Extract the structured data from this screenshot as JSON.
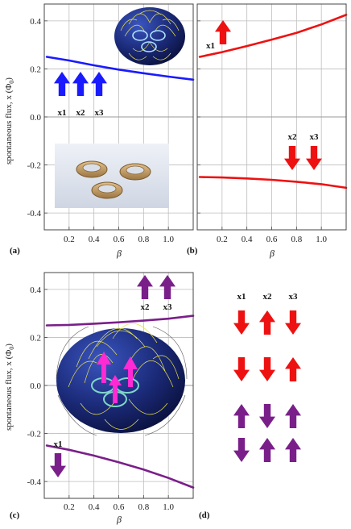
{
  "figure": {
    "y_axis_label": "spontaneous flux, x (Φ",
    "y_axis_label_sub": "0",
    "y_axis_label_tail": ")",
    "panel_labels": [
      "(a)",
      "(b)",
      "(c)",
      "(d)"
    ],
    "x_axis_symbol": "β"
  },
  "chart_data": [
    {
      "type": "line",
      "panel": "a",
      "xlim": [
        0,
        1.2
      ],
      "ylim": [
        -0.47,
        0.47
      ],
      "grid": true,
      "x_ticks": [
        0.2,
        0.4,
        0.6,
        0.8,
        1.0
      ],
      "x_tick_labels": [
        "0.2",
        "0.4",
        "0.6",
        "0.8",
        "1.0"
      ],
      "y_ticks": [
        -0.4,
        -0.2,
        0.0,
        0.2,
        0.4
      ],
      "y_tick_labels": [
        "-0.4",
        "-0.2",
        "0.0",
        "0.2",
        "0.4"
      ],
      "series": [
        {
          "color": "#1a1aff",
          "x": [
            0.02,
            0.2,
            0.4,
            0.6,
            0.8,
            1.0,
            1.2
          ],
          "y": [
            0.25,
            0.235,
            0.215,
            0.197,
            0.182,
            0.168,
            0.155
          ]
        }
      ],
      "arrow_labels": [
        "x1",
        "x2",
        "x3"
      ],
      "arrow_color": "#1a1aff",
      "arrow_directions": [
        "up",
        "up",
        "up"
      ]
    },
    {
      "type": "line",
      "panel": "b",
      "xlim": [
        0,
        1.2
      ],
      "ylim": [
        -0.47,
        0.47
      ],
      "grid": true,
      "x_ticks": [
        0.2,
        0.4,
        0.6,
        0.8,
        1.0
      ],
      "x_tick_labels": [
        "0.2",
        "0.4",
        "0.6",
        "0.8",
        "1.0"
      ],
      "y_ticks": [
        -0.4,
        -0.2,
        0.0,
        0.2,
        0.4
      ],
      "series": [
        {
          "color": "#ee1111",
          "x": [
            0.02,
            0.2,
            0.4,
            0.6,
            0.8,
            1.0,
            1.2
          ],
          "y": [
            0.25,
            0.27,
            0.295,
            0.322,
            0.35,
            0.385,
            0.425
          ]
        },
        {
          "color": "#ee1111",
          "x": [
            0.02,
            0.2,
            0.4,
            0.6,
            0.8,
            1.0,
            1.2
          ],
          "y": [
            -0.25,
            -0.252,
            -0.256,
            -0.262,
            -0.27,
            -0.28,
            -0.295
          ]
        }
      ],
      "arrow_labels": [
        "x1",
        "x2",
        "x3"
      ],
      "arrow_color": "#ee1111",
      "arrow_directions": [
        "up",
        "down",
        "down"
      ]
    },
    {
      "type": "line",
      "panel": "c",
      "xlim": [
        0,
        1.2
      ],
      "ylim": [
        -0.47,
        0.47
      ],
      "grid": true,
      "x_ticks": [
        0.2,
        0.4,
        0.6,
        0.8,
        1.0
      ],
      "x_tick_labels": [
        "0.2",
        "0.4",
        "0.6",
        "0.8",
        "1.0"
      ],
      "y_ticks": [
        -0.4,
        -0.2,
        0.0,
        0.2,
        0.4
      ],
      "y_tick_labels": [
        "-0.4",
        "-0.2",
        "0.0",
        "0.2",
        "0.4"
      ],
      "series": [
        {
          "color": "#7a1f8a",
          "x": [
            0.02,
            0.2,
            0.4,
            0.6,
            0.8,
            1.0,
            1.2
          ],
          "y": [
            0.25,
            0.252,
            0.257,
            0.263,
            0.27,
            0.278,
            0.29
          ]
        },
        {
          "color": "#7a1f8a",
          "x": [
            0.02,
            0.2,
            0.4,
            0.6,
            0.8,
            1.0,
            1.2
          ],
          "y": [
            -0.25,
            -0.268,
            -0.292,
            -0.32,
            -0.35,
            -0.385,
            -0.425
          ]
        }
      ],
      "arrow_labels": [
        "x1",
        "x2",
        "x3"
      ],
      "arrow_color": "#7a1f8a",
      "arrow_directions": [
        "down",
        "up",
        "up"
      ]
    }
  ],
  "panel_d": {
    "headers": [
      "x1",
      "x2",
      "x3"
    ],
    "rows": [
      {
        "color": "#ee1111",
        "directions": [
          "down",
          "up",
          "down"
        ]
      },
      {
        "color": "#ee1111",
        "directions": [
          "down",
          "down",
          "up"
        ]
      },
      {
        "color": "#7a1f8a",
        "directions": [
          "up",
          "down",
          "up"
        ]
      },
      {
        "color": "#7a1f8a",
        "directions": [
          "down",
          "up",
          "up"
        ]
      }
    ]
  },
  "colors": {
    "sphere_fill": "#1b2a78",
    "field_lines": "#e8e24a",
    "ring_fill": "#c9a06a",
    "pink_arrow": "#ff2ad4",
    "inset_bg": "#dfe4ee"
  }
}
